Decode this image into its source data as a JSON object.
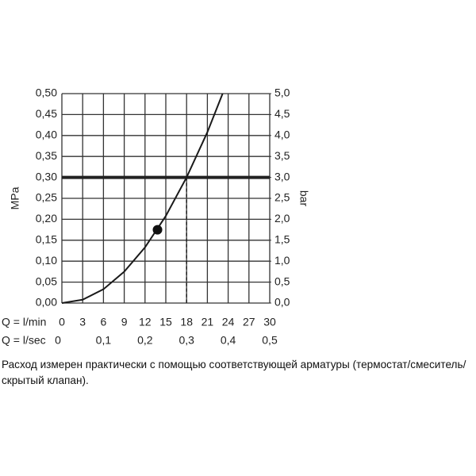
{
  "chart_data": {
    "type": "line",
    "x_label": "Q = l/min",
    "x2_label": "Q = l/sec",
    "y_label": "MPa",
    "y2_label": "bar",
    "x": [
      0,
      3,
      6,
      9,
      12,
      15,
      18,
      21,
      23.2
    ],
    "series": [
      {
        "color": "#1a1a1a",
        "values": [
          0,
          0.008,
          0.033,
          0.075,
          0.133,
          0.208,
          0.3,
          0.408,
          0.5
        ]
      }
    ],
    "xlim": [
      0,
      30
    ],
    "xticks": [
      0,
      3,
      6,
      9,
      12,
      15,
      18,
      21,
      24,
      27,
      30
    ],
    "x2lim": [
      0,
      0.5
    ],
    "x2ticks": [
      0,
      {
        "value": 0.1,
        "label": "0,1"
      },
      {
        "value": 0.2,
        "label": "0,2"
      },
      {
        "value": 0.3,
        "label": "0,3"
      },
      {
        "value": 0.4,
        "label": "0,4"
      },
      {
        "value": 0.5,
        "label": "0,5"
      }
    ],
    "ylim": [
      0,
      0.5
    ],
    "yticks": [
      {
        "value": 0,
        "label": "0,00"
      },
      {
        "value": 0.05,
        "label": "0,05"
      },
      {
        "value": 0.1,
        "label": "0,10"
      },
      {
        "value": 0.15,
        "label": "0,15"
      },
      {
        "value": 0.2,
        "label": "0,20"
      },
      {
        "value": 0.25,
        "label": "0,25"
      },
      {
        "value": 0.3,
        "label": "0,30"
      },
      {
        "value": 0.35,
        "label": "0,35"
      },
      {
        "value": 0.4,
        "label": "0,40"
      },
      {
        "value": 0.45,
        "label": "0,45"
      },
      {
        "value": 0.5,
        "label": "0,50"
      }
    ],
    "y2lim": [
      0,
      5
    ],
    "y2ticks": [
      {
        "value": 0,
        "label": "0,0"
      },
      {
        "value": 0.5,
        "label": "0,5"
      },
      {
        "value": 1,
        "label": "1,0"
      },
      {
        "value": 1.5,
        "label": "1,5"
      },
      {
        "value": 2,
        "label": "2,0"
      },
      {
        "value": 2.5,
        "label": "2,5"
      },
      {
        "value": 3,
        "label": "3,0"
      },
      {
        "value": 3.5,
        "label": "3,5"
      },
      {
        "value": 4,
        "label": "4,0"
      },
      {
        "value": 4.5,
        "label": "4,5"
      },
      {
        "value": 5,
        "label": "5,0"
      }
    ],
    "grid": true,
    "reference_y": 0.3,
    "reference_x": 18,
    "marker": {
      "x": 13.8,
      "y": 0.175
    },
    "caption": "Расход измерен практически с помощью соответствующей арматуры (термостат/смеситель/скрытый клапан)."
  }
}
